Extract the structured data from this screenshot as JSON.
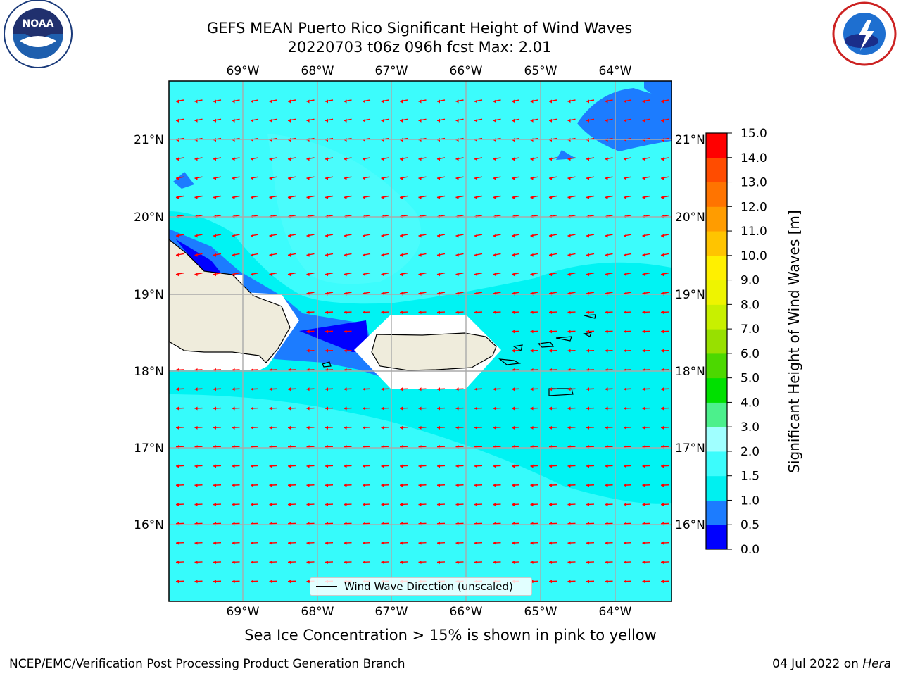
{
  "title": {
    "line1": "GEFS MEAN Puerto Rico Significant Height of Wind Waves",
    "line2": "20220703 t06z 096h fcst   Max: 2.01"
  },
  "logos": {
    "left": "noaa-logo",
    "right": "nws-logo"
  },
  "map": {
    "lon_labels": [
      "69°W",
      "68°W",
      "67°W",
      "66°W",
      "65°W",
      "64°W"
    ],
    "lat_labels": [
      "21°N",
      "20°N",
      "19°N",
      "18°N",
      "17°N",
      "16°N"
    ],
    "land_color": "#efecdc",
    "ocean_color": "#00f5f5",
    "arrow_color": "#ff0000",
    "legend": "Wind Wave Direction (unscaled)"
  },
  "colorbar": {
    "ticks": [
      "0.0",
      "0.5",
      "1.0",
      "1.5",
      "2.0",
      "3.0",
      "4.0",
      "5.0",
      "6.0",
      "7.0",
      "8.0",
      "9.0",
      "10.0",
      "11.0",
      "12.0",
      "13.0",
      "14.0",
      "15.0"
    ],
    "colors": [
      "#0000ff",
      "#1c7cff",
      "#00f0f0",
      "#3cfcfc",
      "#a0ffff",
      "#4cf08c",
      "#00e000",
      "#4cd800",
      "#98e000",
      "#c8f000",
      "#eef400",
      "#fff000",
      "#ffc400",
      "#ff9c00",
      "#ff7400",
      "#ff4c00",
      "#ff0000"
    ],
    "label": "Significant Height of Wind Waves [m]"
  },
  "caption": "Sea Ice Concentration > 15% is shown in pink to yellow",
  "footer": {
    "left": "NCEP/EMC/Verification Post Processing Product Generation Branch",
    "right_date": "04 Jul 2022 on ",
    "right_host": "Hera"
  }
}
